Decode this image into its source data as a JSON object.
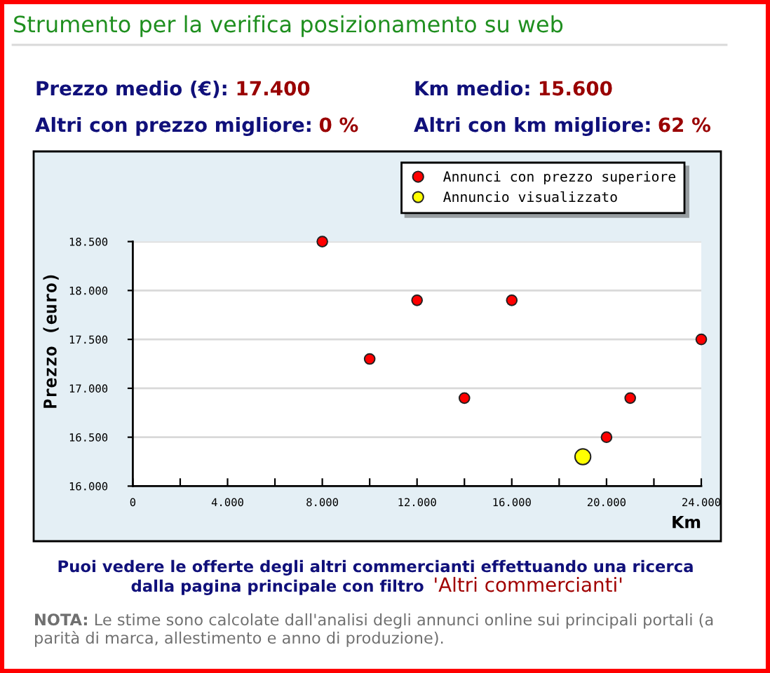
{
  "chart_data": {
    "type": "scatter",
    "title": "Strumento per la verifica posizionamento su web",
    "xlabel": "Km",
    "ylabel": "Prezzo (euro)",
    "series": [
      {
        "name": "Annunci con prezzo superiore",
        "color": "#ff0000",
        "x": [
          8000,
          10000,
          12000,
          14000,
          16000,
          20000,
          21000,
          24000
        ],
        "values": [
          18500,
          17300,
          17900,
          16900,
          17900,
          16500,
          16900,
          17500
        ]
      },
      {
        "name": "Annuncio visualizzato",
        "color": "#ffff00",
        "x": [
          19000
        ],
        "values": [
          16300
        ]
      }
    ],
    "xlim": [
      0,
      24000
    ],
    "xticks": [
      0,
      {
        "value": 2000,
        "label": null
      },
      {
        "value": 4000,
        "label": "4.000"
      },
      {
        "value": 6000,
        "label": null
      },
      {
        "value": 8000,
        "label": "8.000"
      },
      {
        "value": 10000,
        "label": null
      },
      {
        "value": 12000,
        "label": "12.000"
      },
      {
        "value": 14000,
        "label": null
      },
      {
        "value": 16000,
        "label": "16.000"
      },
      {
        "value": 18000,
        "label": null
      },
      {
        "value": 20000,
        "label": "20.000"
      },
      {
        "value": 22000,
        "label": null
      },
      {
        "value": 24000,
        "label": "24.000"
      }
    ],
    "ylim": [
      16000,
      18500
    ],
    "yticks": [
      {
        "value": 16000,
        "label": "16.000"
      },
      {
        "value": 16500,
        "label": "16.500"
      },
      {
        "value": 17000,
        "label": "17.000"
      },
      {
        "value": 17500,
        "label": "17.500"
      },
      {
        "value": 18000,
        "label": "18.000"
      },
      {
        "value": 18500,
        "label": "18.500"
      }
    ],
    "grid": "y",
    "legend": "top right",
    "marker": "circle",
    "annotations": [
      "Prezzo medio (€):",
      "17.400",
      "Km medio:",
      "15.600",
      "Altri con prezzo migliore:",
      "0 %",
      "Altri con km migliore:",
      "62 %",
      "Puoi vedere le offerte degli altri commercianti effettuando una ricerca",
      "dalla pagina principale con filtro",
      "'Altri commercianti'",
      "NOTA:",
      "Le stime sono calcolate dall'analisi degli annunci online sui principali portali (a",
      "parità di marca, allestimento e anno di produzione)."
    ]
  }
}
